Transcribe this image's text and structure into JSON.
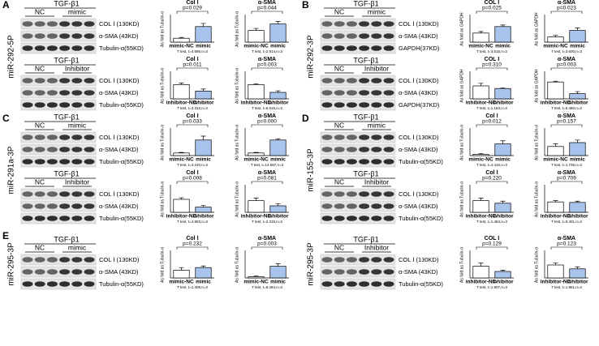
{
  "panels": [
    {
      "letter": "A",
      "mirna": "miR-292-5P",
      "blots": [
        {
          "treatment": "TGF-β1",
          "groups": [
            "NC",
            "mimic"
          ],
          "bands": [
            "COL Ⅰ (130KD)",
            "α-SMA (43KD)",
            "Tubulin-α(55KD)"
          ]
        },
        {
          "treatment": "TGF-β1",
          "groups": [
            "NC",
            "Inhibitor"
          ],
          "bands": [
            "COL Ⅰ (130KD)",
            "α-SMA (43KD)",
            "Tubulin-α(55KD)"
          ]
        }
      ]
    },
    {
      "letter": "B",
      "mirna": "miR-292-3P",
      "blots": [
        {
          "treatment": "TGF-β1",
          "groups": [
            "NC",
            "mimic"
          ],
          "bands": [
            "COL Ⅰ (130KD)",
            "α-SMA (43KD)",
            "GAPDH(37KD)"
          ]
        },
        {
          "treatment": "TGF-β1",
          "groups": [
            "NC",
            "Inhibitor"
          ],
          "bands": [
            "COL Ⅰ (130KD)",
            "α-SMA (43KD)",
            "GAPDH(37KD)"
          ]
        }
      ]
    },
    {
      "letter": "C",
      "mirna": "miR-291a-3P",
      "blots": [
        {
          "treatment": "TGF-β1",
          "groups": [
            "NC",
            "mimic"
          ],
          "bands": [
            "COL Ⅰ (130KD)",
            "α-SMA (43KD)",
            "Tubulin-α(55KD)"
          ]
        },
        {
          "treatment": "TGF-β1",
          "groups": [
            "NC",
            "Inhibitor"
          ],
          "bands": [
            "COL Ⅰ (130KD)",
            "α-SMA (43KD)",
            "Tubulin-α(55KD)"
          ]
        }
      ]
    },
    {
      "letter": "D",
      "mirna": "miR-155-3P",
      "blots": [
        {
          "treatment": "TGF-β1",
          "groups": [
            "NC",
            "mimic"
          ],
          "bands": [
            "COL Ⅰ (130KD)",
            "α-SMA (43KD)",
            "Tubulin-α(55KD)"
          ]
        },
        {
          "treatment": "TGF-β1",
          "groups": [
            "NC",
            "Inhibitor"
          ],
          "bands": [
            "COL Ⅰ (130KD)",
            "α-SMA (43KD)",
            "Tubulin-α(55KD)"
          ]
        }
      ]
    },
    {
      "letter": "E",
      "mirna": "miR-295-3P",
      "blots": [
        {
          "treatment": "TGF-β1",
          "groups": [
            "NC",
            "mimic"
          ],
          "bands": [
            "COL Ⅰ (130KD)",
            "α-SMA (43KD)",
            "Tubulin-α(55KD)"
          ]
        }
      ]
    },
    {
      "mirna": "miR-295-3P",
      "blots": [
        {
          "treatment": "TGF-β1",
          "groups": [
            "NC",
            "Inhibitor"
          ],
          "bands": [
            "COL Ⅰ (130KD)",
            "α-SMA (43KD)",
            "Tubulin-α(55KD)"
          ]
        }
      ]
    }
  ],
  "chart_data": [
    {
      "type": "bar",
      "title": "Col Ⅰ",
      "annotation": "p=0.029",
      "y_label": "As fold as Tubulin-α",
      "categories": [
        "mimic-NC",
        "mimic"
      ],
      "values": [
        0.15,
        0.6
      ],
      "errors": [
        0.03,
        0.12
      ],
      "colors": [
        "#ffffff",
        "#a9c4ec"
      ],
      "ylim": [
        0,
        1
      ],
      "footnote": "T test, t=4.595,n=3"
    },
    {
      "type": "bar",
      "title": "α-SMA",
      "annotation": "p=0.044",
      "y_label": "As fold as Tubulin-α",
      "categories": [
        "mimic-NC",
        "mimic"
      ],
      "values": [
        0.45,
        0.7
      ],
      "errors": [
        0.08,
        0.1
      ],
      "colors": [
        "#ffffff",
        "#a9c4ec"
      ],
      "ylim": [
        0,
        1
      ],
      "footnote": "T test, t=2.914,n=3"
    },
    {
      "type": "bar",
      "title": "Col Ⅰ",
      "annotation": "p=0.011",
      "y_label": "As fold as Tubulin-α",
      "categories": [
        "inhibitor-NC",
        "inhibitor"
      ],
      "values": [
        0.55,
        0.3
      ],
      "errors": [
        0.06,
        0.08
      ],
      "colors": [
        "#ffffff",
        "#a9c4ec"
      ],
      "ylim": [
        0,
        1
      ],
      "footnote": "T test, t=3.312,n=3"
    },
    {
      "type": "bar",
      "title": "α-SMA",
      "annotation": "p=0.003",
      "y_label": "As fold as Tubulin-α",
      "categories": [
        "inhibitor-NC",
        "inhibitor"
      ],
      "values": [
        0.55,
        0.25
      ],
      "errors": [
        0.03,
        0.06
      ],
      "colors": [
        "#ffffff",
        "#a9c4ec"
      ],
      "ylim": [
        0,
        1
      ],
      "footnote": "T test, t=6.516,n=3"
    },
    {
      "type": "bar",
      "title": "COL Ⅰ",
      "annotation": "p=0.025",
      "y_label": "As fold as GAPDH",
      "categories": [
        "mimic-NC",
        "mimic"
      ],
      "values": [
        0.35,
        0.6
      ],
      "errors": [
        0.06,
        0.06
      ],
      "colors": [
        "#ffffff",
        "#a9c4ec"
      ],
      "ylim": [
        0,
        1
      ],
      "footnote": "T test, t=3.515,n=3"
    },
    {
      "type": "bar",
      "title": "α-SMA",
      "annotation": "p=0.023",
      "y_label": "As fold as GAPDH",
      "categories": [
        "mimic-NC",
        "mimic"
      ],
      "values": [
        0.2,
        0.45
      ],
      "errors": [
        0.06,
        0.1
      ],
      "colors": [
        "#ffffff",
        "#a9c4ec"
      ],
      "ylim": [
        0,
        1
      ],
      "footnote": "T test, t=3.600,n=3"
    },
    {
      "type": "bar",
      "title": "COL Ⅰ",
      "annotation": "p=0.310",
      "y_label": "As fold as GAPDH",
      "categories": [
        "inhibitor-NC",
        "inhibitor"
      ],
      "values": [
        0.5,
        0.4
      ],
      "errors": [
        0.1,
        0.02
      ],
      "colors": [
        "#ffffff",
        "#a9c4ec"
      ],
      "ylim": [
        0,
        1
      ],
      "footnote": "T test, t=1.163,n=3"
    },
    {
      "type": "bar",
      "title": "α-SMA",
      "annotation": "p=0.003",
      "y_label": "As fold as GAPDH",
      "categories": [
        "inhibitor-NC",
        "inhibitor"
      ],
      "values": [
        0.65,
        0.2
      ],
      "errors": [
        0.03,
        0.08
      ],
      "colors": [
        "#ffffff",
        "#a9c4ec"
      ],
      "ylim": [
        0,
        1
      ],
      "footnote": "T test, t=6.480,n=3"
    },
    {
      "type": "bar",
      "title": "Col Ⅰ",
      "annotation": "p=0.033",
      "y_label": "As fold as Tubulin-α",
      "categories": [
        "mimic-NC",
        "mimic"
      ],
      "values": [
        0.1,
        0.6
      ],
      "errors": [
        0.02,
        0.15
      ],
      "colors": [
        "#ffffff",
        "#a9c4ec"
      ],
      "ylim": [
        0,
        1
      ],
      "footnote": "T test, t=3.240,n=3"
    },
    {
      "type": "bar",
      "title": "α-SMA",
      "annotation": "p=0.000",
      "y_label": "As fold as Tubulin-α",
      "categories": [
        "mimic-NC",
        "mimic"
      ],
      "values": [
        0.1,
        0.6
      ],
      "errors": [
        0.02,
        0.05
      ],
      "colors": [
        "#ffffff",
        "#a9c4ec"
      ],
      "ylim": [
        0,
        1
      ],
      "footnote": "T test, t=14.687,n=3"
    },
    {
      "type": "bar",
      "title": "Col Ⅰ",
      "annotation": "p=0.008",
      "y_label": "As fold as Tubulin-α",
      "categories": [
        "inhibitor-NC",
        "inhibitor"
      ],
      "values": [
        0.5,
        0.2
      ],
      "errors": [
        0.06,
        0.06
      ],
      "colors": [
        "#ffffff",
        "#a9c4ec"
      ],
      "ylim": [
        0,
        1
      ],
      "footnote": "T test, t=4.903,n=3"
    },
    {
      "type": "bar",
      "title": "α-SMA",
      "annotation": "p=0.081",
      "y_label": "As fold as Tubulin-α",
      "categories": [
        "inhibitor-NC",
        "inhibitor"
      ],
      "values": [
        0.45,
        0.25
      ],
      "errors": [
        0.1,
        0.08
      ],
      "colors": [
        "#ffffff",
        "#a9c4ec"
      ],
      "ylim": [
        0,
        1
      ],
      "footnote": "T test, t=2.315,n=3"
    },
    {
      "type": "bar",
      "title": "Col Ⅰ",
      "annotation": "p=0.012",
      "y_label": "As fold as Tubulin-α",
      "categories": [
        "mimic-NC",
        "mimic"
      ],
      "values": [
        0.05,
        0.45
      ],
      "errors": [
        0.03,
        0.12
      ],
      "colors": [
        "#ffffff",
        "#a9c4ec"
      ],
      "ylim": [
        0,
        1
      ],
      "footnote": "T test, t=4.415,n=3"
    },
    {
      "type": "bar",
      "title": "α-SMA",
      "annotation": "p=0.157",
      "y_label": "As fold as Tubulin-α",
      "categories": [
        "mimic-NC",
        "mimic"
      ],
      "values": [
        0.35,
        0.5
      ],
      "errors": [
        0.1,
        0.1
      ],
      "colors": [
        "#ffffff",
        "#a9c4ec"
      ],
      "ylim": [
        0,
        1
      ],
      "footnote": "T test, t=1.739,n=3"
    },
    {
      "type": "bar",
      "title": "Col Ⅰ",
      "annotation": "p=0.220",
      "y_label": "As fold as Tubulin-α",
      "categories": [
        "inhibitor-NC",
        "inhibitor"
      ],
      "values": [
        0.45,
        0.35
      ],
      "errors": [
        0.1,
        0.08
      ],
      "colors": [
        "#ffffff",
        "#a9c4ec"
      ],
      "ylim": [
        0,
        1
      ],
      "footnote": "T test, t=1.464,n=3"
    },
    {
      "type": "bar",
      "title": "α-SMA",
      "annotation": "p=0.709",
      "y_label": "As fold as Tubulin-α",
      "categories": [
        "inhibitor-NC",
        "inhibitor"
      ],
      "values": [
        0.4,
        0.38
      ],
      "errors": [
        0.05,
        0.05
      ],
      "colors": [
        "#ffffff",
        "#a9c4ec"
      ],
      "ylim": [
        0,
        1
      ],
      "footnote": "T test, t=0.401,n=3"
    },
    {
      "type": "bar",
      "title": "Col Ⅰ",
      "annotation": "p=0.232",
      "y_label": "As fold as Tubulin-α",
      "categories": [
        "mimic-NC",
        "mimic"
      ],
      "values": [
        0.3,
        0.4
      ],
      "errors": [
        0.1,
        0.06
      ],
      "colors": [
        "#ffffff",
        "#a9c4ec"
      ],
      "ylim": [
        0,
        1
      ],
      "footnote": "T test, t=1.409,n=3"
    },
    {
      "type": "bar",
      "title": "α-SMA",
      "annotation": "p=0.003",
      "y_label": "As fold as Tubulin-α",
      "categories": [
        "mimic-NC",
        "mimic"
      ],
      "values": [
        0.05,
        0.45
      ],
      "errors": [
        0.02,
        0.1
      ],
      "colors": [
        "#ffffff",
        "#a9c4ec"
      ],
      "ylim": [
        0,
        1
      ],
      "footnote": "T test, t=6.284,n=3"
    },
    {
      "type": "bar",
      "title": "COL Ⅰ",
      "annotation": "p=0.129",
      "y_label": "As fold as Tubulin-α",
      "categories": [
        "inhibitor-NC",
        "inhibitor"
      ],
      "values": [
        0.45,
        0.25
      ],
      "errors": [
        0.12,
        0.05
      ],
      "colors": [
        "#ffffff",
        "#a9c4ec"
      ],
      "ylim": [
        0,
        1
      ],
      "footnote": "T test, t=1.907,n=3"
    },
    {
      "type": "bar",
      "title": "α-SMA",
      "annotation": "p=0.123",
      "y_label": "As fold as Tubulin-α",
      "categories": [
        "inhibitor-NC",
        "inhibitor"
      ],
      "values": [
        0.5,
        0.35
      ],
      "errors": [
        0.08,
        0.08
      ],
      "colors": [
        "#ffffff",
        "#a9c4ec"
      ],
      "ylim": [
        0,
        1
      ],
      "footnote": "T test, t=1.951,n=3"
    }
  ]
}
